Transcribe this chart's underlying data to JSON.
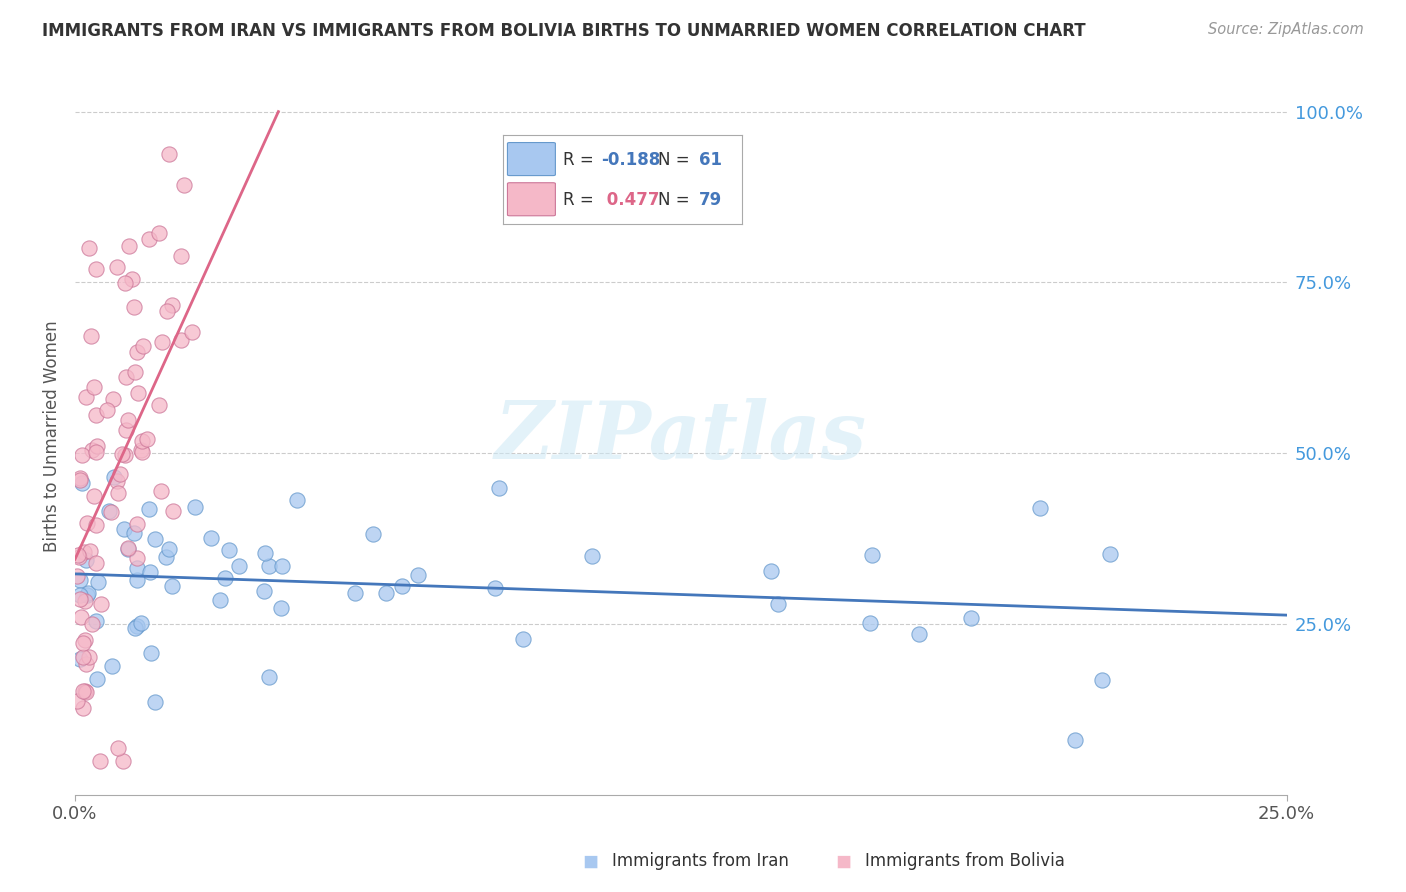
{
  "title": "IMMIGRANTS FROM IRAN VS IMMIGRANTS FROM BOLIVIA BIRTHS TO UNMARRIED WOMEN CORRELATION CHART",
  "source": "Source: ZipAtlas.com",
  "ylabel": "Births to Unmarried Women",
  "y_tick_labels": [
    "25.0%",
    "50.0%",
    "75.0%",
    "100.0%"
  ],
  "y_tick_values": [
    0.25,
    0.5,
    0.75,
    1.0
  ],
  "x_range": [
    0.0,
    0.25
  ],
  "y_range": [
    0.0,
    1.05
  ],
  "iran_color": "#a8c8f0",
  "iran_edge_color": "#6699cc",
  "bolivia_color": "#f5b8c8",
  "bolivia_edge_color": "#cc7799",
  "iran_line_color": "#4477bb",
  "bolivia_line_color": "#dd6688",
  "iran_R": -0.188,
  "iran_N": 61,
  "bolivia_R": 0.477,
  "bolivia_N": 79,
  "watermark": "ZIPatlas",
  "background_color": "#ffffff",
  "legend_R_iran_color": "#4477bb",
  "legend_R_bolivia_color": "#dd6688",
  "legend_N_color": "#4477bb"
}
